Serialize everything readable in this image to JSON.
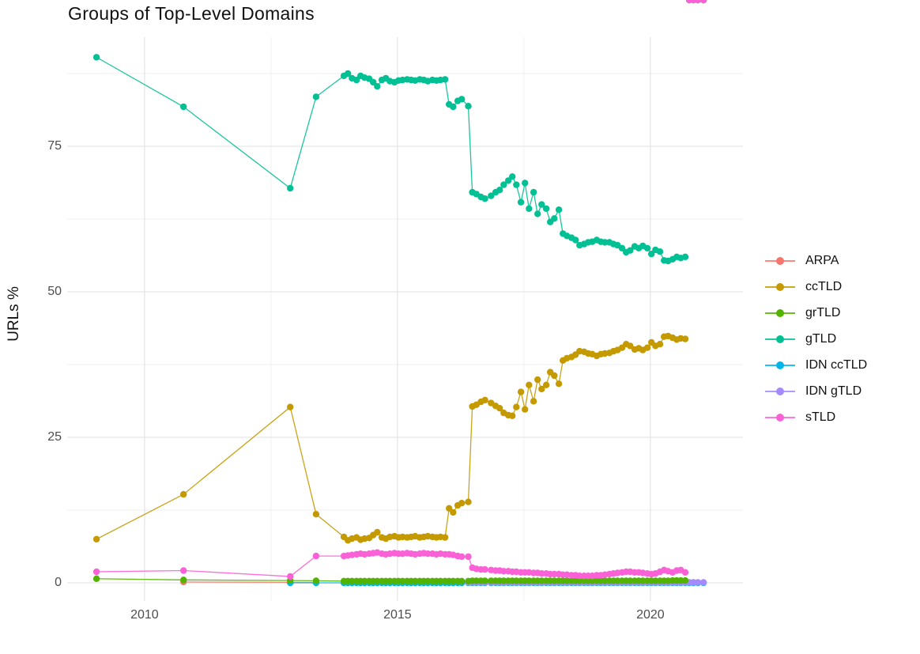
{
  "chart_data": {
    "type": "line",
    "title": "Groups of Top-Level Domains",
    "xlabel": "",
    "ylabel": "URLs %",
    "legend_position": "right",
    "grid": "on",
    "xlim": [
      2008.47,
      2021.83
    ],
    "ylim": [
      -3.125,
      93.75
    ],
    "x_ticks": {
      "major": [
        2010,
        2015,
        2020
      ],
      "labels": [
        "2010",
        "2015",
        "2020"
      ],
      "minor": [
        2012.5,
        2017.5
      ]
    },
    "y_ticks": {
      "major": [
        0,
        25,
        50,
        75
      ],
      "labels": [
        "0",
        "25",
        "50",
        "75"
      ],
      "minor": [
        12.5,
        37.5,
        62.5,
        87.5
      ]
    },
    "x_all": [
      2009.05,
      2010.77,
      2012.88,
      2013.39,
      2013.94,
      2014.02,
      2014.1,
      2014.19,
      2014.27,
      2014.35,
      2014.44,
      2014.52,
      2014.6,
      2014.69,
      2014.77,
      2014.85,
      2014.94,
      2015.02,
      2015.1,
      2015.19,
      2015.27,
      2015.35,
      2015.44,
      2015.52,
      2015.6,
      2015.69,
      2015.77,
      2015.85,
      2015.94,
      2016.02,
      2016.1,
      2016.19,
      2016.27,
      2016.4,
      2016.48,
      2016.56,
      2016.65,
      2016.73,
      2016.85,
      2016.94,
      2017.02,
      2017.1,
      2017.19,
      2017.27,
      2017.35,
      2017.44,
      2017.52,
      2017.6,
      2017.69,
      2017.77,
      2017.85,
      2017.94,
      2018.02,
      2018.1,
      2018.19,
      2018.27,
      2018.35,
      2018.44,
      2018.52,
      2018.6,
      2018.69,
      2018.77,
      2018.85,
      2018.94,
      2019.02,
      2019.1,
      2019.19,
      2019.27,
      2019.35,
      2019.44,
      2019.52,
      2019.6,
      2019.69,
      2019.77,
      2019.85,
      2019.94,
      2020.02,
      2020.1,
      2020.19,
      2020.27,
      2020.35,
      2020.44,
      2020.52,
      2020.6,
      2020.69,
      2020.77,
      2020.85,
      2020.94,
      2021.05
    ],
    "series": [
      {
        "name": "ARPA",
        "color": "#F8766D",
        "z": 0,
        "x": [
          2010.77,
          2012.88,
          2013.39
        ],
        "y": [
          0.15,
          0.08,
          0.05
        ]
      },
      {
        "name": "ccTLD",
        "color": "#C49A00",
        "z": 1,
        "y": [
          7.5,
          15.2,
          30.2,
          11.8,
          7.9,
          7.3,
          7.6,
          7.8,
          7.4,
          7.6,
          7.7,
          8.2,
          8.7,
          7.8,
          7.6,
          7.9,
          8.0,
          7.8,
          7.9,
          7.8,
          7.9,
          8.0,
          7.8,
          7.9,
          8.0,
          7.9,
          7.8,
          7.9,
          7.8,
          12.8,
          12.1,
          13.3,
          13.7,
          13.9,
          30.3,
          30.6,
          31.1,
          31.4,
          30.9,
          30.4,
          30.0,
          29.2,
          28.8,
          28.7,
          30.2,
          32.8,
          29.8,
          34.0,
          31.2,
          34.9,
          33.3,
          34.0,
          36.2,
          35.6,
          34.2,
          38.2,
          38.6,
          38.8,
          39.2,
          39.8,
          39.7,
          39.4,
          39.3,
          39.0,
          39.3,
          39.4,
          39.5,
          39.8,
          40.0,
          40.4,
          41.0,
          40.7,
          40.1,
          40.3,
          40.0,
          40.4,
          41.3,
          40.7,
          41.0,
          42.3,
          42.4,
          42.1,
          41.8,
          42.0,
          41.9
        ]
      },
      {
        "name": "grTLD",
        "color": "#53B400",
        "z": 4,
        "y": [
          0.7,
          0.5,
          0.4,
          0.35,
          0.3,
          0.3,
          0.3,
          0.3,
          0.3,
          0.3,
          0.3,
          0.3,
          0.3,
          0.3,
          0.3,
          0.3,
          0.3,
          0.3,
          0.3,
          0.3,
          0.3,
          0.3,
          0.3,
          0.3,
          0.3,
          0.3,
          0.3,
          0.3,
          0.3,
          0.3,
          0.3,
          0.3,
          0.3,
          0.3,
          0.35,
          0.35,
          0.35,
          0.35,
          0.35,
          0.35,
          0.35,
          0.35,
          0.35,
          0.35,
          0.35,
          0.35,
          0.35,
          0.35,
          0.35,
          0.35,
          0.35,
          0.35,
          0.35,
          0.35,
          0.35,
          0.35,
          0.35,
          0.35,
          0.35,
          0.35,
          0.35,
          0.35,
          0.35,
          0.35,
          0.35,
          0.35,
          0.35,
          0.35,
          0.35,
          0.35,
          0.35,
          0.35,
          0.35,
          0.35,
          0.35,
          0.35,
          0.35,
          0.35,
          0.35,
          0.35,
          0.35,
          0.4,
          0.4,
          0.4,
          0.4
        ]
      },
      {
        "name": "gTLD",
        "color": "#00C094",
        "z": 5,
        "y": [
          90.3,
          81.8,
          67.8,
          83.5,
          87.1,
          87.5,
          86.7,
          86.4,
          87.1,
          86.8,
          86.6,
          86.0,
          85.3,
          86.4,
          86.7,
          86.2,
          86.0,
          86.3,
          86.4,
          86.5,
          86.4,
          86.3,
          86.5,
          86.4,
          86.2,
          86.4,
          86.3,
          86.4,
          86.5,
          82.2,
          81.8,
          82.8,
          83.1,
          81.9,
          67.1,
          66.8,
          66.3,
          66.0,
          66.5,
          67.1,
          67.5,
          68.4,
          69.1,
          69.8,
          68.4,
          65.4,
          68.7,
          64.3,
          67.1,
          63.4,
          65.0,
          64.3,
          62.0,
          62.6,
          64.1,
          60.0,
          59.6,
          59.3,
          58.9,
          58.0,
          58.2,
          58.5,
          58.6,
          58.9,
          58.6,
          58.5,
          58.5,
          58.2,
          58.0,
          57.5,
          56.8,
          57.1,
          57.8,
          57.5,
          57.9,
          57.5,
          56.5,
          57.2,
          56.9,
          55.4,
          55.3,
          55.6,
          56.0,
          55.8,
          56.0
        ]
      },
      {
        "name": "IDN ccTLD",
        "color": "#00B6EB",
        "z": 2,
        "x_from": 2,
        "y_const": 0.0
      },
      {
        "name": "IDN gTLD",
        "color": "#A58AFF",
        "z": 3,
        "x_from": 33,
        "y_const": 0.08
      },
      {
        "name": "sTLD",
        "color": "#FB61D7",
        "z": 6,
        "y": [
          1.9,
          2.1,
          1.1,
          4.6,
          4.6,
          4.7,
          4.8,
          4.9,
          5.0,
          4.9,
          5.0,
          5.1,
          5.2,
          5.0,
          4.9,
          5.0,
          5.1,
          5.0,
          5.0,
          5.1,
          5.0,
          4.9,
          5.0,
          5.1,
          5.0,
          5.0,
          4.9,
          5.0,
          4.9,
          4.9,
          4.8,
          4.6,
          4.5,
          4.5,
          2.6,
          2.4,
          2.3,
          2.3,
          2.2,
          2.1,
          2.1,
          2.0,
          2.0,
          1.9,
          1.9,
          1.8,
          1.8,
          1.8,
          1.7,
          1.7,
          1.6,
          1.6,
          1.5,
          1.5,
          1.5,
          1.4,
          1.4,
          1.3,
          1.3,
          1.2,
          1.2,
          1.2,
          1.2,
          1.3,
          1.3,
          1.4,
          1.5,
          1.6,
          1.7,
          1.8,
          1.9,
          1.9,
          1.8,
          1.8,
          1.7,
          1.6,
          1.5,
          1.6,
          1.9,
          2.2,
          2.0,
          1.8,
          2.1,
          2.2,
          1.8
        ]
      }
    ],
    "style": {
      "major_grid_color": "#e2e2e2",
      "minor_grid_color": "#efefef",
      "point_radius": 4.2,
      "line_width": 1.3
    }
  }
}
